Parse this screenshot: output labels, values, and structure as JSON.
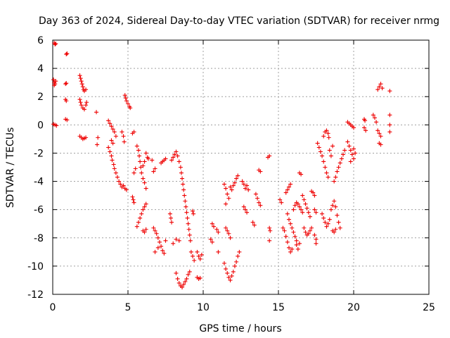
{
  "chart_data": {
    "type": "scatter",
    "title": "Day 363 of 2024, Sidereal Day-to-day VTEC variation (SDTVAR) for receiver nrmg",
    "xlabel": "GPS time / hours",
    "ylabel": "SDTVAR / TECUs",
    "xlim": [
      0,
      25
    ],
    "ylim": [
      -12,
      6
    ],
    "x_ticks": [
      "0",
      "5",
      "10",
      "15",
      "20",
      "25"
    ],
    "y_ticks": [
      "-12",
      "-10",
      "-8",
      "-6",
      "-4",
      "-2",
      "0",
      "2",
      "4",
      "6"
    ],
    "grid": true,
    "marker": "plus",
    "color": "#ee0000",
    "points": [
      [
        0.1,
        5.8
      ],
      [
        0.15,
        5.7
      ],
      [
        0.2,
        5.75
      ],
      [
        0.05,
        3.2
      ],
      [
        0.1,
        3.0
      ],
      [
        0.15,
        2.9
      ],
      [
        0.2,
        3.1
      ],
      [
        0.1,
        2.8
      ],
      [
        0.05,
        0.05
      ],
      [
        0.15,
        0.0
      ],
      [
        0.25,
        -0.05
      ],
      [
        0.9,
        5.0
      ],
      [
        0.95,
        5.05
      ],
      [
        0.85,
        2.9
      ],
      [
        0.9,
        2.95
      ],
      [
        0.85,
        1.8
      ],
      [
        0.9,
        1.7
      ],
      [
        0.85,
        0.4
      ],
      [
        0.95,
        0.35
      ],
      [
        1.8,
        3.5
      ],
      [
        1.85,
        3.3
      ],
      [
        1.9,
        3.1
      ],
      [
        1.95,
        2.9
      ],
      [
        2.0,
        2.7
      ],
      [
        2.05,
        2.5
      ],
      [
        2.1,
        2.4
      ],
      [
        2.2,
        2.5
      ],
      [
        1.8,
        1.8
      ],
      [
        1.85,
        1.6
      ],
      [
        1.9,
        1.4
      ],
      [
        2.0,
        1.2
      ],
      [
        2.1,
        1.1
      ],
      [
        2.2,
        1.4
      ],
      [
        2.25,
        1.6
      ],
      [
        1.8,
        -0.8
      ],
      [
        1.9,
        -0.9
      ],
      [
        2.0,
        -1.0
      ],
      [
        2.1,
        -0.95
      ],
      [
        2.2,
        -0.9
      ],
      [
        2.9,
        0.9
      ],
      [
        3.0,
        -0.9
      ],
      [
        2.95,
        -1.4
      ],
      [
        3.7,
        0.3
      ],
      [
        3.8,
        0.1
      ],
      [
        3.9,
        -0.1
      ],
      [
        4.0,
        -0.3
      ],
      [
        4.1,
        -0.5
      ],
      [
        4.2,
        -0.8
      ],
      [
        3.9,
        -1.1
      ],
      [
        4.0,
        -1.3
      ],
      [
        3.7,
        -1.6
      ],
      [
        3.8,
        -1.9
      ],
      [
        3.9,
        -2.2
      ],
      [
        3.95,
        -2.5
      ],
      [
        4.05,
        -2.8
      ],
      [
        4.1,
        -3.1
      ],
      [
        4.2,
        -3.4
      ],
      [
        4.3,
        -3.7
      ],
      [
        4.4,
        -4.0
      ],
      [
        4.5,
        -4.2
      ],
      [
        4.6,
        -4.4
      ],
      [
        4.7,
        -4.3
      ],
      [
        4.8,
        -4.5
      ],
      [
        4.9,
        -4.6
      ],
      [
        4.8,
        2.1
      ],
      [
        4.85,
        1.9
      ],
      [
        4.9,
        1.7
      ],
      [
        5.0,
        1.5
      ],
      [
        5.1,
        1.3
      ],
      [
        5.15,
        1.2
      ],
      [
        4.6,
        -0.5
      ],
      [
        4.7,
        -0.8
      ],
      [
        4.75,
        -1.2
      ],
      [
        5.3,
        -0.6
      ],
      [
        5.4,
        -0.5
      ],
      [
        5.3,
        -5.1
      ],
      [
        5.35,
        -5.3
      ],
      [
        5.4,
        -5.5
      ],
      [
        5.6,
        -1.5
      ],
      [
        5.7,
        -1.8
      ],
      [
        5.75,
        -2.2
      ],
      [
        5.8,
        -2.6
      ],
      [
        5.85,
        -3.0
      ],
      [
        5.9,
        -3.4
      ],
      [
        6.0,
        -3.8
      ],
      [
        6.1,
        -4.1
      ],
      [
        6.2,
        -4.5
      ],
      [
        6.2,
        -2.0
      ],
      [
        6.3,
        -2.3
      ],
      [
        6.1,
        -2.6
      ],
      [
        6.0,
        -2.9
      ],
      [
        6.35,
        -2.4
      ],
      [
        5.5,
        -3.1
      ],
      [
        5.4,
        -3.4
      ],
      [
        5.6,
        -7.2
      ],
      [
        5.7,
        -6.9
      ],
      [
        5.8,
        -6.6
      ],
      [
        5.9,
        -6.3
      ],
      [
        6.0,
        -6.0
      ],
      [
        6.1,
        -5.8
      ],
      [
        6.2,
        -5.6
      ],
      [
        6.0,
        -7.5
      ],
      [
        6.1,
        -7.6
      ],
      [
        6.2,
        -7.4
      ],
      [
        6.6,
        -2.5
      ],
      [
        6.7,
        -3.3
      ],
      [
        6.8,
        -3.1
      ],
      [
        6.7,
        -7.3
      ],
      [
        6.8,
        -7.5
      ],
      [
        6.9,
        -7.7
      ],
      [
        7.0,
        -8.0
      ],
      [
        7.1,
        -8.3
      ],
      [
        7.2,
        -8.6
      ],
      [
        7.3,
        -8.9
      ],
      [
        7.4,
        -9.1
      ],
      [
        6.8,
        -9.0
      ],
      [
        7.0,
        -8.7
      ],
      [
        7.5,
        -8.2
      ],
      [
        7.2,
        -2.7
      ],
      [
        7.3,
        -2.6
      ],
      [
        7.4,
        -2.5
      ],
      [
        7.5,
        -2.4
      ],
      [
        7.8,
        -6.3
      ],
      [
        7.85,
        -6.6
      ],
      [
        7.9,
        -6.9
      ],
      [
        7.9,
        -2.5
      ],
      [
        8.0,
        -2.3
      ],
      [
        8.1,
        -2.1
      ],
      [
        8.2,
        -1.9
      ],
      [
        8.3,
        -2.2
      ],
      [
        8.4,
        -2.6
      ],
      [
        8.5,
        -3.0
      ],
      [
        8.55,
        -3.4
      ],
      [
        8.6,
        -3.8
      ],
      [
        8.65,
        -4.2
      ],
      [
        8.7,
        -4.6
      ],
      [
        8.75,
        -5.0
      ],
      [
        8.8,
        -5.4
      ],
      [
        8.85,
        -5.8
      ],
      [
        8.9,
        -6.2
      ],
      [
        8.95,
        -6.6
      ],
      [
        9.0,
        -7.0
      ],
      [
        9.05,
        -7.4
      ],
      [
        9.1,
        -7.8
      ],
      [
        9.15,
        -8.2
      ],
      [
        8.0,
        -8.4
      ],
      [
        8.2,
        -8.1
      ],
      [
        8.4,
        -8.2
      ],
      [
        8.2,
        -10.5
      ],
      [
        8.3,
        -10.9
      ],
      [
        8.4,
        -11.2
      ],
      [
        8.5,
        -11.4
      ],
      [
        8.6,
        -11.5
      ],
      [
        8.7,
        -11.3
      ],
      [
        8.8,
        -11.1
      ],
      [
        8.9,
        -10.9
      ],
      [
        9.0,
        -10.6
      ],
      [
        9.1,
        -10.4
      ],
      [
        9.2,
        -9.0
      ],
      [
        9.3,
        -9.3
      ],
      [
        9.4,
        -9.6
      ],
      [
        9.3,
        -6.1
      ],
      [
        9.35,
        -6.3
      ],
      [
        9.6,
        -9.0
      ],
      [
        9.7,
        -9.3
      ],
      [
        9.8,
        -9.5
      ],
      [
        9.9,
        -9.2
      ],
      [
        9.6,
        -10.8
      ],
      [
        9.7,
        -10.9
      ],
      [
        9.8,
        -10.85
      ],
      [
        10.6,
        -7.0
      ],
      [
        10.7,
        -7.2
      ],
      [
        10.5,
        -8.1
      ],
      [
        10.6,
        -8.3
      ],
      [
        10.9,
        -7.4
      ],
      [
        11.0,
        -7.6
      ],
      [
        11.0,
        -9.0
      ],
      [
        11.4,
        -4.2
      ],
      [
        11.5,
        -4.5
      ],
      [
        11.6,
        -4.9
      ],
      [
        11.7,
        -5.2
      ],
      [
        11.5,
        -5.6
      ],
      [
        11.8,
        -4.4
      ],
      [
        11.9,
        -4.6
      ],
      [
        12.0,
        -4.3
      ],
      [
        12.1,
        -4.1
      ],
      [
        12.2,
        -3.8
      ],
      [
        12.3,
        -3.6
      ],
      [
        11.5,
        -7.3
      ],
      [
        11.6,
        -7.5
      ],
      [
        11.7,
        -7.7
      ],
      [
        11.8,
        -8.0
      ],
      [
        11.4,
        -9.8
      ],
      [
        11.5,
        -10.2
      ],
      [
        11.6,
        -10.5
      ],
      [
        11.7,
        -10.8
      ],
      [
        11.8,
        -11.0
      ],
      [
        11.9,
        -10.7
      ],
      [
        12.0,
        -10.4
      ],
      [
        12.1,
        -10.0
      ],
      [
        12.2,
        -9.7
      ],
      [
        12.3,
        -9.3
      ],
      [
        12.4,
        -9.0
      ],
      [
        12.6,
        -4.0
      ],
      [
        12.7,
        -4.2
      ],
      [
        12.8,
        -4.5
      ],
      [
        12.9,
        -4.3
      ],
      [
        13.0,
        -4.6
      ],
      [
        12.7,
        -5.8
      ],
      [
        12.8,
        -6.0
      ],
      [
        12.9,
        -6.2
      ],
      [
        13.3,
        -6.9
      ],
      [
        13.4,
        -7.1
      ],
      [
        13.5,
        -4.9
      ],
      [
        13.6,
        -5.2
      ],
      [
        13.7,
        -5.5
      ],
      [
        13.8,
        -5.7
      ],
      [
        13.7,
        -3.2
      ],
      [
        13.8,
        -3.3
      ],
      [
        14.3,
        -2.3
      ],
      [
        14.4,
        -2.2
      ],
      [
        14.4,
        -7.3
      ],
      [
        14.45,
        -7.5
      ],
      [
        14.4,
        -8.2
      ],
      [
        15.1,
        -5.3
      ],
      [
        15.2,
        -5.5
      ],
      [
        15.3,
        -7.3
      ],
      [
        15.4,
        -7.5
      ],
      [
        15.5,
        -7.9
      ],
      [
        15.6,
        -8.3
      ],
      [
        15.7,
        -8.7
      ],
      [
        15.8,
        -9.0
      ],
      [
        15.9,
        -8.8
      ],
      [
        15.5,
        -4.8
      ],
      [
        15.6,
        -4.6
      ],
      [
        15.7,
        -4.4
      ],
      [
        15.8,
        -4.2
      ],
      [
        15.6,
        -6.3
      ],
      [
        15.7,
        -6.7
      ],
      [
        15.8,
        -7.0
      ],
      [
        15.9,
        -7.3
      ],
      [
        16.0,
        -7.6
      ],
      [
        16.1,
        -7.9
      ],
      [
        16.2,
        -8.2
      ],
      [
        16.0,
        -6.0
      ],
      [
        16.1,
        -5.7
      ],
      [
        16.2,
        -5.5
      ],
      [
        16.3,
        -5.6
      ],
      [
        16.4,
        -5.8
      ],
      [
        16.5,
        -6.0
      ],
      [
        16.6,
        -6.2
      ],
      [
        16.2,
        -8.5
      ],
      [
        16.3,
        -8.8
      ],
      [
        16.4,
        -8.4
      ],
      [
        16.4,
        -3.4
      ],
      [
        16.5,
        -3.5
      ],
      [
        16.6,
        -5.0
      ],
      [
        16.7,
        -5.3
      ],
      [
        16.8,
        -5.6
      ],
      [
        16.9,
        -5.9
      ],
      [
        17.0,
        -6.2
      ],
      [
        17.1,
        -6.5
      ],
      [
        16.7,
        -7.3
      ],
      [
        16.8,
        -7.6
      ],
      [
        16.9,
        -7.8
      ],
      [
        17.0,
        -7.7
      ],
      [
        17.1,
        -7.5
      ],
      [
        17.2,
        -7.3
      ],
      [
        17.2,
        -4.7
      ],
      [
        17.3,
        -4.8
      ],
      [
        17.4,
        -5.0
      ],
      [
        17.4,
        -6.0
      ],
      [
        17.5,
        -6.2
      ],
      [
        17.4,
        -7.8
      ],
      [
        17.5,
        -8.1
      ],
      [
        17.5,
        -8.4
      ],
      [
        17.6,
        -1.3
      ],
      [
        17.7,
        -1.6
      ],
      [
        17.8,
        -1.9
      ],
      [
        17.9,
        -2.2
      ],
      [
        18.0,
        -2.6
      ],
      [
        18.1,
        -3.0
      ],
      [
        18.2,
        -3.4
      ],
      [
        18.3,
        -3.7
      ],
      [
        18.0,
        -0.8
      ],
      [
        18.1,
        -0.5
      ],
      [
        18.2,
        -0.4
      ],
      [
        18.3,
        -0.6
      ],
      [
        18.35,
        -0.9
      ],
      [
        17.9,
        -6.3
      ],
      [
        18.0,
        -6.6
      ],
      [
        18.1,
        -6.9
      ],
      [
        18.2,
        -7.2
      ],
      [
        18.3,
        -7.0
      ],
      [
        18.4,
        -6.7
      ],
      [
        18.5,
        -6.0
      ],
      [
        18.6,
        -5.7
      ],
      [
        18.7,
        -5.4
      ],
      [
        18.8,
        -5.8
      ],
      [
        18.9,
        -6.4
      ],
      [
        19.0,
        -6.9
      ],
      [
        19.1,
        -7.3
      ],
      [
        18.4,
        -1.8
      ],
      [
        18.5,
        -2.2
      ],
      [
        18.6,
        -1.5
      ],
      [
        18.7,
        -4.0
      ],
      [
        18.8,
        -3.7
      ],
      [
        18.9,
        -3.3
      ],
      [
        19.0,
        -3.0
      ],
      [
        19.1,
        -2.7
      ],
      [
        19.2,
        -2.4
      ],
      [
        19.3,
        -2.1
      ],
      [
        19.4,
        -1.8
      ],
      [
        18.6,
        -7.5
      ],
      [
        18.7,
        -7.6
      ],
      [
        18.8,
        -7.4
      ],
      [
        19.6,
        0.2
      ],
      [
        19.7,
        0.1
      ],
      [
        19.8,
        0.0
      ],
      [
        19.9,
        -0.1
      ],
      [
        20.0,
        -0.2
      ],
      [
        19.6,
        -1.2
      ],
      [
        19.7,
        -1.5
      ],
      [
        19.8,
        -1.8
      ],
      [
        19.9,
        -2.1
      ],
      [
        20.0,
        -2.4
      ],
      [
        19.8,
        -2.6
      ],
      [
        20.0,
        -1.7
      ],
      [
        20.1,
        -2.0
      ],
      [
        20.7,
        0.4
      ],
      [
        20.75,
        0.3
      ],
      [
        20.7,
        -0.2
      ],
      [
        20.8,
        -0.4
      ],
      [
        21.3,
        0.7
      ],
      [
        21.4,
        0.5
      ],
      [
        21.5,
        0.2
      ],
      [
        21.6,
        -0.4
      ],
      [
        21.7,
        -0.6
      ],
      [
        21.8,
        -0.8
      ],
      [
        21.7,
        -1.3
      ],
      [
        21.8,
        -1.4
      ],
      [
        21.6,
        2.5
      ],
      [
        21.7,
        2.7
      ],
      [
        21.8,
        2.9
      ],
      [
        21.9,
        2.6
      ],
      [
        22.4,
        2.4
      ],
      [
        22.4,
        0.7
      ],
      [
        22.4,
        0.0
      ],
      [
        22.4,
        -0.5
      ]
    ]
  }
}
